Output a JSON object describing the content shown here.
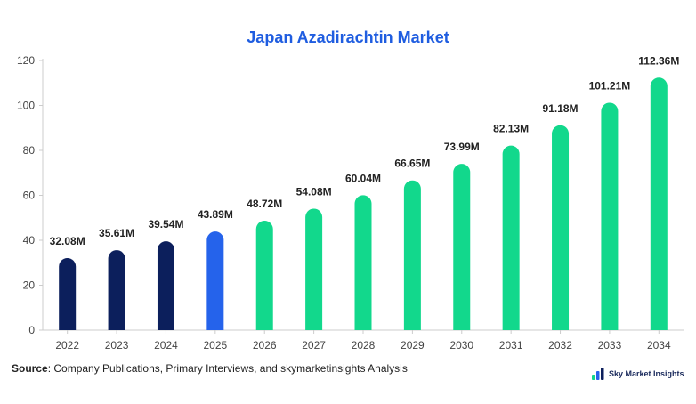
{
  "chart_data": {
    "type": "bar",
    "title": "Japan Azadirachtin Market",
    "categories": [
      "2022",
      "2023",
      "2024",
      "2025",
      "2026",
      "2027",
      "2028",
      "2029",
      "2030",
      "2031",
      "2032",
      "2033",
      "2034"
    ],
    "values": [
      32.08,
      35.61,
      39.54,
      43.89,
      48.72,
      54.08,
      60.04,
      66.65,
      73.99,
      82.13,
      91.18,
      101.21,
      112.36
    ],
    "data_labels": [
      "32.08M",
      "35.61M",
      "39.54M",
      "43.89M",
      "48.72M",
      "54.08M",
      "60.04M",
      "66.65M",
      "73.99M",
      "82.13M",
      "91.18M",
      "101.21M",
      "112.36M"
    ],
    "xlabel": "",
    "ylabel": "",
    "ylim": [
      0,
      120
    ],
    "yticks": [
      0,
      20,
      40,
      60,
      80,
      100,
      120
    ],
    "grid": false,
    "colors": {
      "historical": "#0c1f5c",
      "current": "#2563eb",
      "forecast": "#12d88c"
    },
    "bar_color_groups": [
      "historical",
      "historical",
      "historical",
      "current",
      "forecast",
      "forecast",
      "forecast",
      "forecast",
      "forecast",
      "forecast",
      "forecast",
      "forecast",
      "forecast"
    ]
  },
  "source": {
    "label": "Source",
    "text": ": Company Publications, Primary Interviews, and skymarketinsights Analysis"
  },
  "brand": {
    "name": "Sky Market Insights",
    "logo_icon": "brand-logo-icon"
  }
}
